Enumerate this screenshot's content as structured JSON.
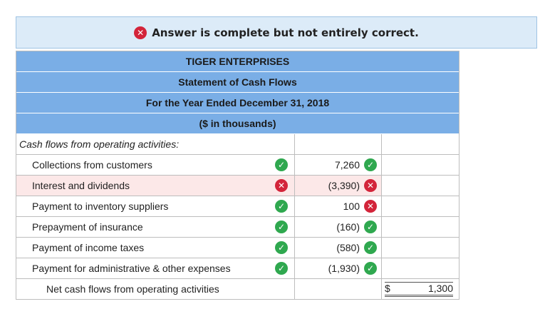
{
  "banner": {
    "message": "Answer is complete but not entirely correct."
  },
  "statement": {
    "company": "TIGER ENTERPRISES",
    "title": "Statement of Cash Flows",
    "period": "For the Year Ended December 31, 2018",
    "units": "($ in thousands)"
  },
  "section_label": "Cash flows from operating activities:",
  "rows": [
    {
      "label": "Collections from customers",
      "label_status": "correct",
      "amount": "7,260",
      "amount_status": "correct"
    },
    {
      "label": "Interest and dividends",
      "label_status": "incorrect",
      "amount": "(3,390)",
      "amount_status": "incorrect"
    },
    {
      "label": "Payment to inventory suppliers",
      "label_status": "correct",
      "amount": "100",
      "amount_status": "incorrect"
    },
    {
      "label": "Prepayment of insurance",
      "label_status": "correct",
      "amount": "(160)",
      "amount_status": "correct"
    },
    {
      "label": "Payment of income taxes",
      "label_status": "correct",
      "amount": "(580)",
      "amount_status": "correct"
    },
    {
      "label": "Payment for administrative & other expenses",
      "label_status": "correct",
      "amount": "(1,930)",
      "amount_status": "correct"
    }
  ],
  "total": {
    "label": "Net cash flows from operating activities",
    "currency": "$",
    "amount": "1,300"
  },
  "icons": {
    "correct": "check-circle-icon",
    "incorrect": "x-circle-icon"
  },
  "colors": {
    "correct": "#2fa84f",
    "incorrect": "#d3243a",
    "header_bg": "#7aaee6",
    "banner_bg": "#dcebf8"
  }
}
